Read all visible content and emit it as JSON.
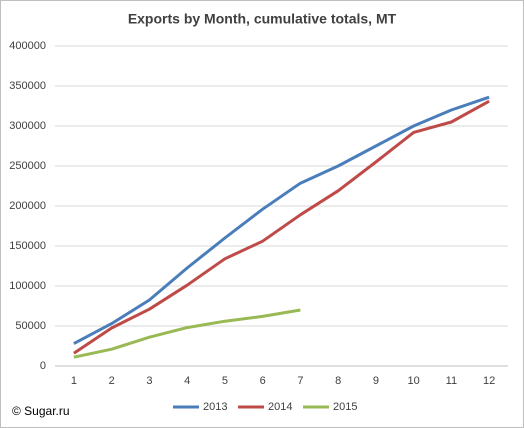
{
  "chart_data": {
    "type": "line",
    "title": "Exports by Month, cumulative totals, MT",
    "categories": [
      "1",
      "2",
      "3",
      "4",
      "5",
      "6",
      "7",
      "8",
      "9",
      "10",
      "11",
      "12"
    ],
    "series": [
      {
        "name": "2013",
        "color": "#4a7ebb",
        "values": [
          28000,
          53000,
          82500,
          122500,
          160000,
          196000,
          228500,
          250000,
          275000,
          300000,
          320000,
          336000
        ]
      },
      {
        "name": "2014",
        "color": "#be4b48",
        "values": [
          16000,
          47500,
          71000,
          101000,
          134000,
          156000,
          189000,
          219000,
          255000,
          292000,
          305000,
          331000
        ]
      },
      {
        "name": "2015",
        "color": "#98b954",
        "values": [
          11000,
          21000,
          36000,
          48000,
          56000,
          62000,
          70000,
          null,
          null,
          null,
          null,
          null
        ]
      }
    ],
    "ylim": [
      0,
      400000
    ],
    "yticks": [
      0,
      50000,
      100000,
      150000,
      200000,
      250000,
      300000,
      350000,
      400000
    ],
    "grid": true,
    "legend": "bottom",
    "source": "© Sugar.ru"
  }
}
